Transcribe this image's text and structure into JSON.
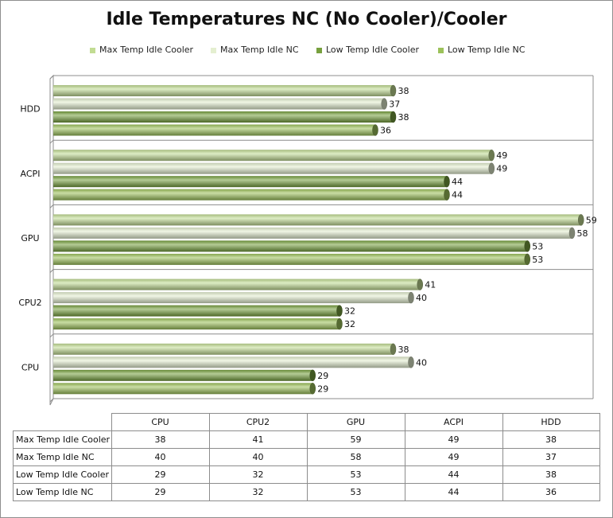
{
  "chart_data": {
    "type": "bar",
    "orientation": "horizontal",
    "title": "Idle Temperatures NC (No Cooler)/Cooler",
    "categories": [
      "CPU",
      "CPU2",
      "GPU",
      "ACPI",
      "HDD"
    ],
    "series": [
      {
        "name": "Max Temp Idle Cooler",
        "values": [
          38,
          41,
          59,
          49,
          38
        ],
        "color": "#c2dc93"
      },
      {
        "name": "Max Temp Idle NC",
        "values": [
          40,
          40,
          58,
          49,
          37
        ],
        "color": "#e4efd0"
      },
      {
        "name": "Low Temp Idle Cooler",
        "values": [
          29,
          32,
          53,
          44,
          38
        ],
        "color": "#77a03e"
      },
      {
        "name": "Low Temp Idle NC",
        "values": [
          29,
          32,
          53,
          44,
          36
        ],
        "color": "#9cc25a"
      }
    ],
    "xlim": [
      0,
      60
    ],
    "grid": true,
    "legend": "top",
    "data_table": true,
    "bar_style": "3d-cylinder"
  }
}
